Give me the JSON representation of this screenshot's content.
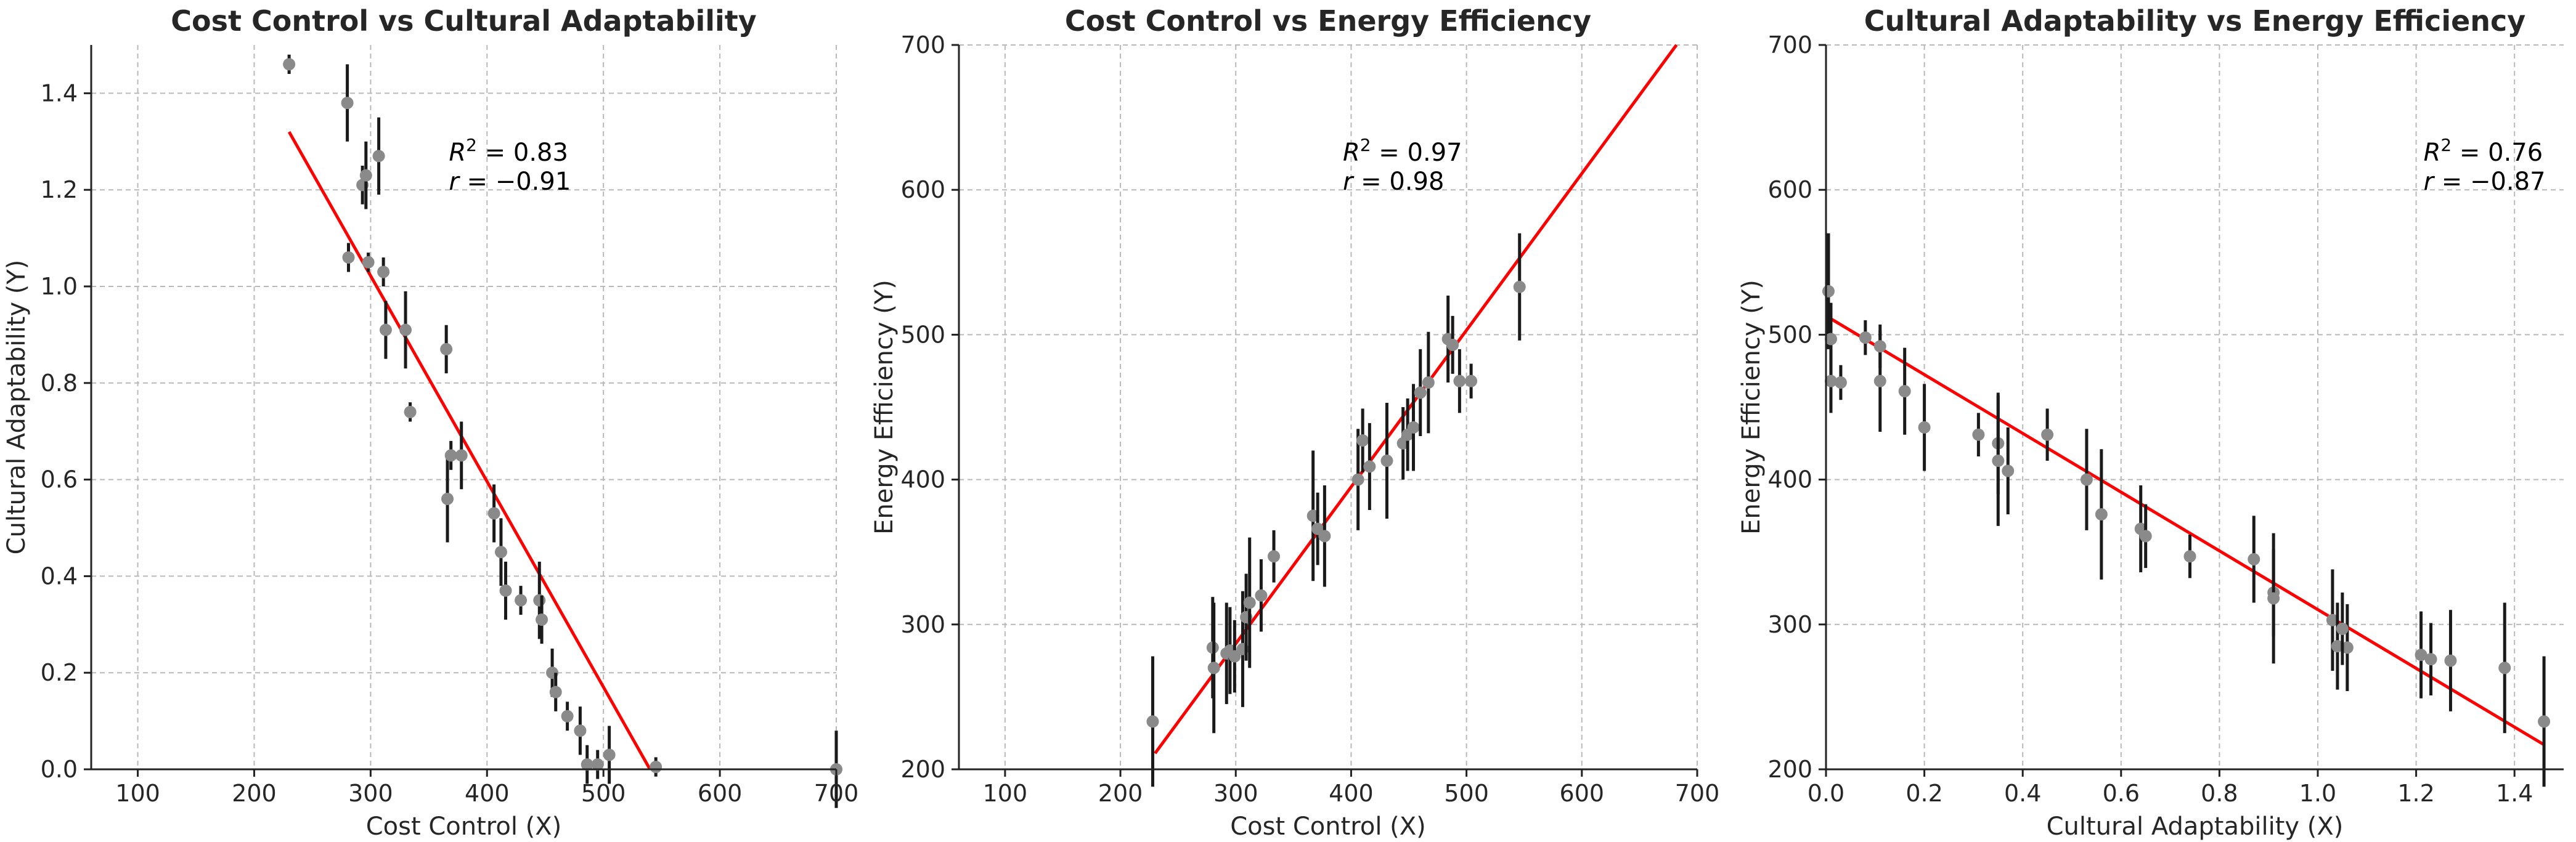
{
  "colors": {
    "points": "#8a8a8a",
    "errorbars": "#1a1a1a",
    "fit": "#ff0000",
    "grid": "#b9b9b9"
  },
  "chart_data": [
    {
      "type": "scatter",
      "title": "Cost Control vs Cultural Adaptability",
      "xlabel": "Cost Control (X)",
      "ylabel": "Cultural Adaptability (Y)",
      "xlim": [
        60,
        700
      ],
      "ylim": [
        0,
        1.5
      ],
      "xticks": [
        100,
        200,
        300,
        400,
        500,
        600,
        700
      ],
      "yticks": [
        0.0,
        0.2,
        0.4,
        0.6,
        0.8,
        1.0,
        1.2,
        1.4
      ],
      "ytick_labels": [
        "0.0",
        "0.2",
        "0.4",
        "0.6",
        "0.8",
        "1.0",
        "1.2",
        "1.4"
      ],
      "grid": true,
      "r2_text": "0.83",
      "r_text": "−0.91",
      "fit_line": {
        "x0": 230,
        "y0": 1.32,
        "x1": 540,
        "y1": 0.0
      },
      "points": [
        {
          "x": 230,
          "y": 1.46,
          "err": 0.02
        },
        {
          "x": 280,
          "y": 1.38,
          "err": 0.08
        },
        {
          "x": 281,
          "y": 1.06,
          "err": 0.03
        },
        {
          "x": 293,
          "y": 1.21,
          "err": 0.04
        },
        {
          "x": 296,
          "y": 1.23,
          "err": 0.07
        },
        {
          "x": 298,
          "y": 1.05,
          "err": 0.02
        },
        {
          "x": 307,
          "y": 1.27,
          "err": 0.08
        },
        {
          "x": 311,
          "y": 1.03,
          "err": 0.03
        },
        {
          "x": 313,
          "y": 0.91,
          "err": 0.06
        },
        {
          "x": 330,
          "y": 0.91,
          "err": 0.08
        },
        {
          "x": 334,
          "y": 0.74,
          "err": 0.02
        },
        {
          "x": 365,
          "y": 0.87,
          "err": 0.05
        },
        {
          "x": 366,
          "y": 0.56,
          "err": 0.09
        },
        {
          "x": 369,
          "y": 0.65,
          "err": 0.03
        },
        {
          "x": 378,
          "y": 0.65,
          "err": 0.07
        },
        {
          "x": 406,
          "y": 0.53,
          "err": 0.06
        },
        {
          "x": 412,
          "y": 0.45,
          "err": 0.07
        },
        {
          "x": 416,
          "y": 0.37,
          "err": 0.06
        },
        {
          "x": 429,
          "y": 0.35,
          "err": 0.03
        },
        {
          "x": 445,
          "y": 0.35,
          "err": 0.08
        },
        {
          "x": 447,
          "y": 0.31,
          "err": 0.05
        },
        {
          "x": 456,
          "y": 0.2,
          "err": 0.05
        },
        {
          "x": 459,
          "y": 0.16,
          "err": 0.04
        },
        {
          "x": 469,
          "y": 0.11,
          "err": 0.03
        },
        {
          "x": 480,
          "y": 0.08,
          "err": 0.05
        },
        {
          "x": 486,
          "y": 0.01,
          "err": 0.04
        },
        {
          "x": 495,
          "y": 0.01,
          "err": 0.03
        },
        {
          "x": 505,
          "y": 0.03,
          "err": 0.06
        },
        {
          "x": 545,
          "y": 0.005,
          "err": 0.02
        },
        {
          "x": 700,
          "y": 0.0,
          "err": 0.08
        }
      ]
    },
    {
      "type": "scatter",
      "title": "Cost Control vs Energy Efficiency",
      "xlabel": "Cost Control (X)",
      "ylabel": "Energy Efficiency (Y)",
      "xlim": [
        60,
        700
      ],
      "ylim": [
        200,
        700
      ],
      "xticks": [
        100,
        200,
        300,
        400,
        500,
        600,
        700
      ],
      "yticks": [
        200,
        300,
        400,
        500,
        600,
        700
      ],
      "ytick_labels": [
        "200",
        "300",
        "400",
        "500",
        "600",
        "700"
      ],
      "grid": true,
      "r2_text": "0.97",
      "r_text": "0.98",
      "fit_line": {
        "x0": 230,
        "y0": 211,
        "x1": 682,
        "y1": 700
      },
      "points": [
        {
          "x": 228,
          "y": 233,
          "err": 45
        },
        {
          "x": 280,
          "y": 284,
          "err": 35
        },
        {
          "x": 281,
          "y": 270,
          "err": 45
        },
        {
          "x": 292,
          "y": 280,
          "err": 35
        },
        {
          "x": 295,
          "y": 282,
          "err": 30
        },
        {
          "x": 299,
          "y": 278,
          "err": 25
        },
        {
          "x": 306,
          "y": 283,
          "err": 40
        },
        {
          "x": 309,
          "y": 305,
          "err": 30
        },
        {
          "x": 312,
          "y": 315,
          "err": 45
        },
        {
          "x": 322,
          "y": 320,
          "err": 25
        },
        {
          "x": 333,
          "y": 347,
          "err": 18
        },
        {
          "x": 367,
          "y": 375,
          "err": 45
        },
        {
          "x": 371,
          "y": 366,
          "err": 25
        },
        {
          "x": 377,
          "y": 361,
          "err": 35
        },
        {
          "x": 406,
          "y": 400,
          "err": 35
        },
        {
          "x": 410,
          "y": 427,
          "err": 22
        },
        {
          "x": 416,
          "y": 409,
          "err": 30
        },
        {
          "x": 431,
          "y": 413,
          "err": 40
        },
        {
          "x": 445,
          "y": 425,
          "err": 25
        },
        {
          "x": 449,
          "y": 431,
          "err": 25
        },
        {
          "x": 454,
          "y": 436,
          "err": 30
        },
        {
          "x": 460,
          "y": 460,
          "err": 30
        },
        {
          "x": 467,
          "y": 467,
          "err": 35
        },
        {
          "x": 484,
          "y": 497,
          "err": 30
        },
        {
          "x": 488,
          "y": 493,
          "err": 20
        },
        {
          "x": 494,
          "y": 468,
          "err": 22
        },
        {
          "x": 504,
          "y": 468,
          "err": 12
        },
        {
          "x": 546,
          "y": 533,
          "err": 37
        }
      ]
    },
    {
      "type": "scatter",
      "title": "Cultural Adaptability vs Energy Efficiency",
      "xlabel": "Cultural Adaptability (X)",
      "ylabel": "Energy Efficiency (Y)",
      "xlim": [
        0.0,
        1.5
      ],
      "ylim": [
        200,
        700
      ],
      "xticks": [
        0.0,
        0.2,
        0.4,
        0.6,
        0.8,
        1.0,
        1.2,
        1.4
      ],
      "xtick_labels": [
        "0.0",
        "0.2",
        "0.4",
        "0.6",
        "0.8",
        "1.0",
        "1.2",
        "1.4"
      ],
      "yticks": [
        200,
        300,
        400,
        500,
        600,
        700
      ],
      "ytick_labels": [
        "200",
        "300",
        "400",
        "500",
        "600",
        "700"
      ],
      "grid": true,
      "r2_text": "0.76",
      "r_text": "−0.87",
      "fit_line": {
        "x0": 0.0,
        "y0": 513,
        "x1": 1.46,
        "y1": 217
      },
      "points": [
        {
          "x": 0.005,
          "y": 530,
          "err": 40
        },
        {
          "x": 0.01,
          "y": 497,
          "err": 25
        },
        {
          "x": 0.01,
          "y": 468,
          "err": 22
        },
        {
          "x": 0.03,
          "y": 467,
          "err": 12
        },
        {
          "x": 0.08,
          "y": 498,
          "err": 12
        },
        {
          "x": 0.11,
          "y": 468,
          "err": 35
        },
        {
          "x": 0.11,
          "y": 492,
          "err": 15
        },
        {
          "x": 0.16,
          "y": 461,
          "err": 30
        },
        {
          "x": 0.2,
          "y": 436,
          "err": 30
        },
        {
          "x": 0.31,
          "y": 431,
          "err": 15
        },
        {
          "x": 0.35,
          "y": 425,
          "err": 35
        },
        {
          "x": 0.35,
          "y": 413,
          "err": 45
        },
        {
          "x": 0.37,
          "y": 406,
          "err": 30
        },
        {
          "x": 0.45,
          "y": 431,
          "err": 18
        },
        {
          "x": 0.53,
          "y": 400,
          "err": 35
        },
        {
          "x": 0.56,
          "y": 376,
          "err": 45
        },
        {
          "x": 0.64,
          "y": 366,
          "err": 30
        },
        {
          "x": 0.65,
          "y": 361,
          "err": 22
        },
        {
          "x": 0.74,
          "y": 347,
          "err": 15
        },
        {
          "x": 0.87,
          "y": 345,
          "err": 30
        },
        {
          "x": 0.91,
          "y": 322,
          "err": 30
        },
        {
          "x": 0.91,
          "y": 318,
          "err": 45
        },
        {
          "x": 1.03,
          "y": 303,
          "err": 35
        },
        {
          "x": 1.04,
          "y": 285,
          "err": 30
        },
        {
          "x": 1.06,
          "y": 284,
          "err": 30
        },
        {
          "x": 1.05,
          "y": 297,
          "err": 25
        },
        {
          "x": 1.21,
          "y": 279,
          "err": 30
        },
        {
          "x": 1.23,
          "y": 276,
          "err": 25
        },
        {
          "x": 1.27,
          "y": 275,
          "err": 35
        },
        {
          "x": 1.38,
          "y": 270,
          "err": 45
        },
        {
          "x": 1.46,
          "y": 233,
          "err": 45
        }
      ]
    }
  ]
}
